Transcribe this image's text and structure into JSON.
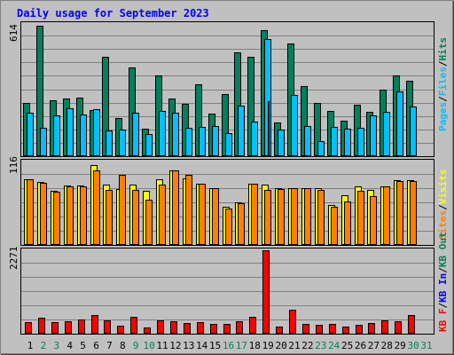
{
  "colors": {
    "background": "#c0c0c0",
    "border": "#808080",
    "title": "#0000ff",
    "hits": "#00805c",
    "files": "#00c0ff",
    "pages": "#0000ff",
    "visits": "#ffff00",
    "sites": "#ff8000",
    "kb_f": "#ff0000",
    "kb_in": "#0000ff",
    "kb_out": "#00805c",
    "day_weekday": "#000000",
    "day_weekend": "#00805c"
  },
  "chart_data": [
    {
      "type": "bar",
      "panel": "hits_files_pages",
      "title": "Daily usage for September 2023",
      "ymax_label": "614",
      "ylim": [
        0,
        614
      ],
      "grid": true,
      "categories": [
        "1",
        "2",
        "3",
        "4",
        "5",
        "6",
        "7",
        "8",
        "9",
        "10",
        "11",
        "12",
        "13",
        "14",
        "15",
        "16",
        "17",
        "18",
        "19",
        "20",
        "21",
        "22",
        "23",
        "24",
        "25",
        "26",
        "27",
        "28",
        "29",
        "30",
        "31"
      ],
      "series": [
        {
          "name": "Hits",
          "values": [
            249,
            605,
            259,
            267,
            270,
            215,
            462,
            176,
            411,
            127,
            375,
            268,
            242,
            334,
            198,
            287,
            483,
            460,
            584,
            157,
            523,
            325,
            249,
            212,
            165,
            241,
            208,
            307,
            375,
            349,
            0
          ]
        },
        {
          "name": "Files",
          "values": [
            200,
            132,
            189,
            221,
            193,
            219,
            121,
            125,
            200,
            102,
            210,
            203,
            133,
            137,
            140,
            108,
            233,
            162,
            543,
            122,
            285,
            140,
            69,
            138,
            126,
            131,
            188,
            206,
            299,
            231,
            0
          ]
        },
        {
          "name": "Pages",
          "values": [
            0,
            0,
            0,
            0,
            0,
            0,
            0,
            0,
            0,
            0,
            0,
            0,
            0,
            0,
            0,
            0,
            0,
            0,
            255,
            0,
            0,
            0,
            0,
            0,
            0,
            0,
            0,
            0,
            0,
            0,
            0
          ]
        }
      ]
    },
    {
      "type": "bar",
      "panel": "visits_sites",
      "ymax_label": "116",
      "ylim": [
        0,
        116
      ],
      "grid": true,
      "categories": [
        "1",
        "2",
        "3",
        "4",
        "5",
        "6",
        "7",
        "8",
        "9",
        "10",
        "11",
        "12",
        "13",
        "14",
        "15",
        "16",
        "17",
        "18",
        "19",
        "20",
        "21",
        "22",
        "23",
        "24",
        "25",
        "26",
        "27",
        "28",
        "29",
        "30",
        "31"
      ],
      "series": [
        {
          "name": "Visits",
          "values": [
            91,
            88,
            75,
            83,
            83,
            111,
            84,
            78,
            84,
            75,
            91,
            104,
            93,
            85,
            79,
            53,
            59,
            85,
            84,
            79,
            79,
            79,
            79,
            55,
            69,
            82,
            76,
            82,
            90,
            90,
            0
          ]
        },
        {
          "name": "Sites",
          "values": [
            91,
            86,
            74,
            82,
            82,
            104,
            76,
            97,
            76,
            63,
            84,
            104,
            98,
            85,
            79,
            51,
            58,
            85,
            76,
            78,
            79,
            79,
            76,
            53,
            60,
            75,
            68,
            81,
            89,
            89,
            0
          ]
        }
      ]
    },
    {
      "type": "bar",
      "panel": "kbytes",
      "ymax_label": "2271",
      "ylim": [
        0,
        2271
      ],
      "grid": true,
      "categories": [
        "1",
        "2",
        "3",
        "4",
        "5",
        "6",
        "7",
        "8",
        "9",
        "10",
        "11",
        "12",
        "13",
        "14",
        "15",
        "16",
        "17",
        "18",
        "19",
        "20",
        "21",
        "22",
        "23",
        "24",
        "25",
        "26",
        "27",
        "28",
        "29",
        "30",
        "31"
      ],
      "series": [
        {
          "name": "KB F",
          "values": [
            310,
            444,
            303,
            336,
            391,
            498,
            372,
            208,
            469,
            172,
            364,
            339,
            292,
            318,
            273,
            275,
            337,
            462,
            2271,
            200,
            645,
            269,
            234,
            268,
            194,
            240,
            284,
            356,
            330,
            500,
            0
          ]
        },
        {
          "name": "KB In",
          "values": [
            0,
            0,
            0,
            0,
            0,
            0,
            0,
            0,
            0,
            0,
            0,
            0,
            0,
            0,
            0,
            0,
            0,
            0,
            0,
            0,
            0,
            0,
            0,
            0,
            0,
            0,
            0,
            0,
            0,
            0,
            0
          ]
        },
        {
          "name": "KB Out",
          "values": [
            0,
            0,
            0,
            0,
            0,
            0,
            0,
            0,
            0,
            0,
            0,
            0,
            0,
            0,
            0,
            0,
            0,
            0,
            0,
            0,
            0,
            0,
            0,
            0,
            0,
            0,
            0,
            0,
            0,
            0,
            0
          ]
        }
      ],
      "weekend_days": [
        "2",
        "3",
        "9",
        "10",
        "16",
        "17",
        "23",
        "24",
        "30",
        "31"
      ]
    }
  ]
}
